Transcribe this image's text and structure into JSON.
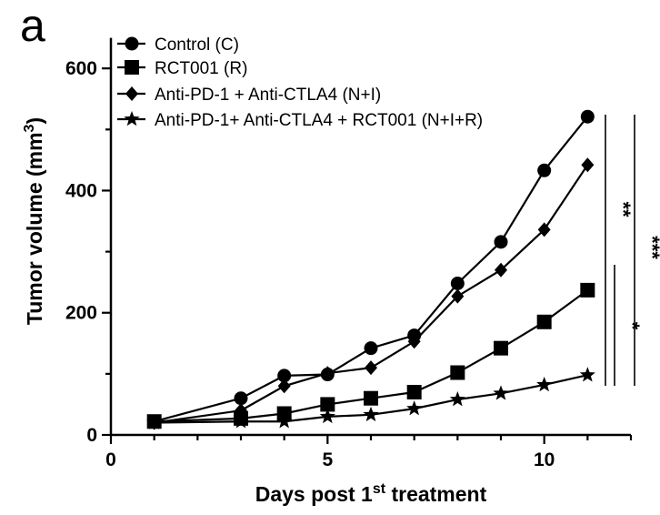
{
  "panel_label": "a",
  "chart_data": {
    "type": "line",
    "xlabel": "Days post 1st treatment",
    "xlabel_main": "Days post 1",
    "xlabel_sup": "st",
    "xlabel_tail": " treatment",
    "ylabel": "Tumor volume (mm3)",
    "ylabel_main": "Tumor volume (mm",
    "ylabel_sup": "3",
    "ylabel_tail": ")",
    "xlim": [
      0,
      12
    ],
    "ylim": [
      0,
      650
    ],
    "x_ticks": [
      0,
      5,
      10
    ],
    "y_ticks": [
      0,
      200,
      400,
      600
    ],
    "x": [
      1,
      3,
      4,
      5,
      6,
      7,
      8,
      9,
      10,
      11
    ],
    "series": [
      {
        "name": "Control (C)",
        "marker": "circle",
        "values": [
          22,
          60,
          97,
          99,
          142,
          163,
          248,
          316,
          433,
          521
        ]
      },
      {
        "name": "RCT001 (R)",
        "marker": "square",
        "values": [
          22,
          27,
          35,
          50,
          60,
          70,
          102,
          142,
          185,
          237
        ]
      },
      {
        "name": "Anti-PD-1 + Anti-CTLA4 (N+I)",
        "marker": "diamond",
        "values": [
          20,
          40,
          80,
          101,
          110,
          153,
          227,
          270,
          336,
          442
        ]
      },
      {
        "name": "Anti-PD-1+ Anti-CTLA4 + RCT001 (N+I+R)",
        "marker": "star",
        "values": [
          20,
          22,
          22,
          30,
          33,
          43,
          58,
          68,
          82,
          98
        ]
      }
    ],
    "significance": [
      {
        "label": "**"
      },
      {
        "label": "***"
      },
      {
        "label": "*"
      }
    ],
    "legend_position": "top-left"
  }
}
